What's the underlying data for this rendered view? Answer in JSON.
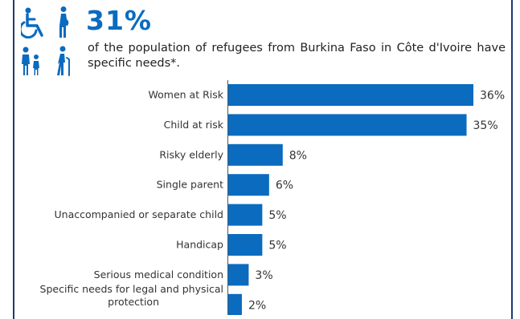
{
  "header": {
    "value": "31%",
    "description": "of the population of refugees from Burkina Faso in Côte d'Ivoire have specific needs*.",
    "icons": [
      "wheelchair-icon",
      "pregnant-woman-icon",
      "parent-child-icon",
      "elderly-person-icon"
    ],
    "accent_color": "#0a6bbf",
    "frame_color": "#1f3a6e"
  },
  "chart_data": {
    "type": "bar",
    "orientation": "horizontal",
    "categories": [
      "Women at Risk",
      "Child at risk",
      "Risky elderly",
      "Single parent",
      "Unaccompanied or separate child",
      "Handicap",
      "Serious medical condition",
      "Specific needs for legal and physical protection"
    ],
    "values": [
      36,
      35,
      8,
      6,
      5,
      5,
      3,
      2
    ],
    "value_labels": [
      "36%",
      "35%",
      "8%",
      "6%",
      "5%",
      "5%",
      "3%",
      "2%"
    ],
    "unit": "%",
    "xlim": [
      0,
      36
    ],
    "bar_color": "#0a6bbf",
    "grid": false,
    "legend": "none"
  }
}
